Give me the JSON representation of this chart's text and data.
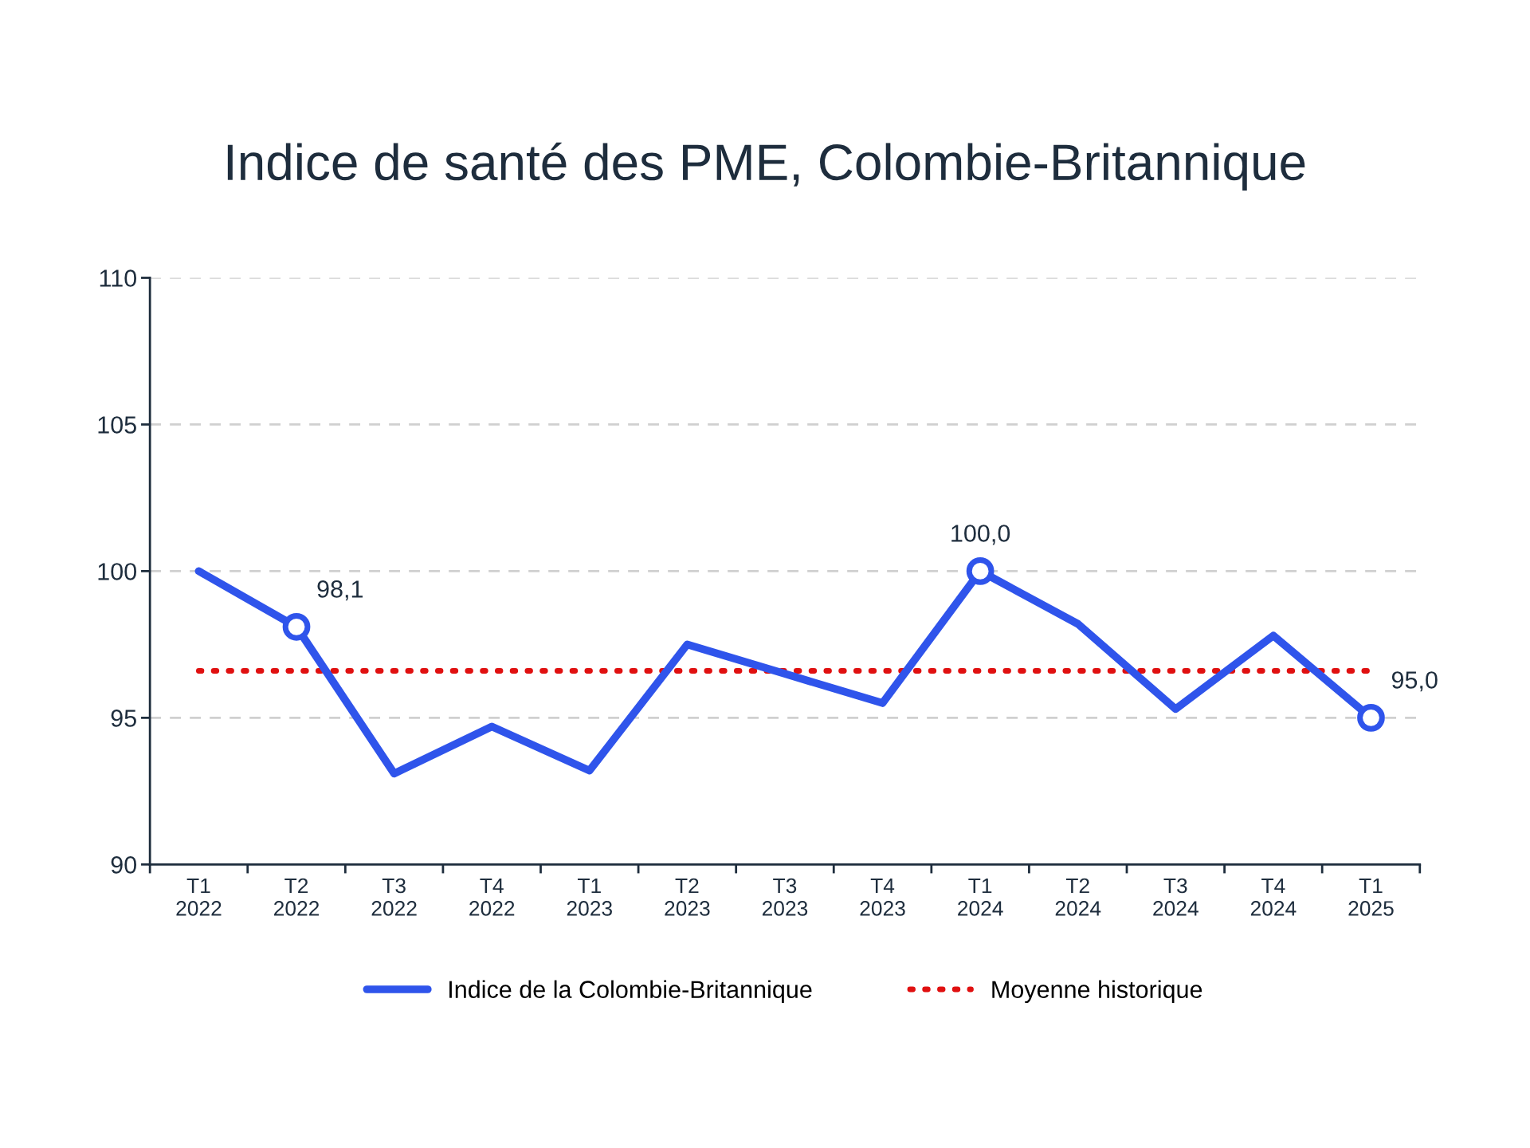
{
  "chart_data": {
    "type": "line",
    "title": "Indice de santé des PME, Colombie-Britannique",
    "categories": [
      "T1\n2022",
      "T2\n2022",
      "T3\n2022",
      "T4\n2022",
      "T1\n2023",
      "T2\n2023",
      "T3\n2023",
      "T4\n2023",
      "T1\n2024",
      "T2\n2024",
      "T3\n2024",
      "T4\n2024",
      "T1\n2025"
    ],
    "series": [
      {
        "name": "Indice de la Colombie-Britannique",
        "color": "#2f54eb",
        "line_style": "solid",
        "values": [
          100.0,
          98.1,
          93.1,
          94.7,
          93.2,
          97.5,
          96.5,
          95.5,
          100.0,
          98.2,
          95.3,
          97.8,
          95.0
        ],
        "value_labels": [
          null,
          "98,1",
          null,
          null,
          null,
          null,
          null,
          null,
          "100,0",
          null,
          null,
          null,
          "95,0"
        ]
      },
      {
        "name": "Moyenne historique",
        "color": "#e01010",
        "line_style": "dotted",
        "values": [
          96.6,
          96.6,
          96.6,
          96.6,
          96.6,
          96.6,
          96.6,
          96.6,
          96.6,
          96.6,
          96.6,
          96.6,
          96.6
        ]
      }
    ],
    "ylim": [
      90,
      110
    ],
    "yticks": [
      90,
      95,
      100,
      105,
      110
    ],
    "grid": "y",
    "legend": "bottom"
  }
}
